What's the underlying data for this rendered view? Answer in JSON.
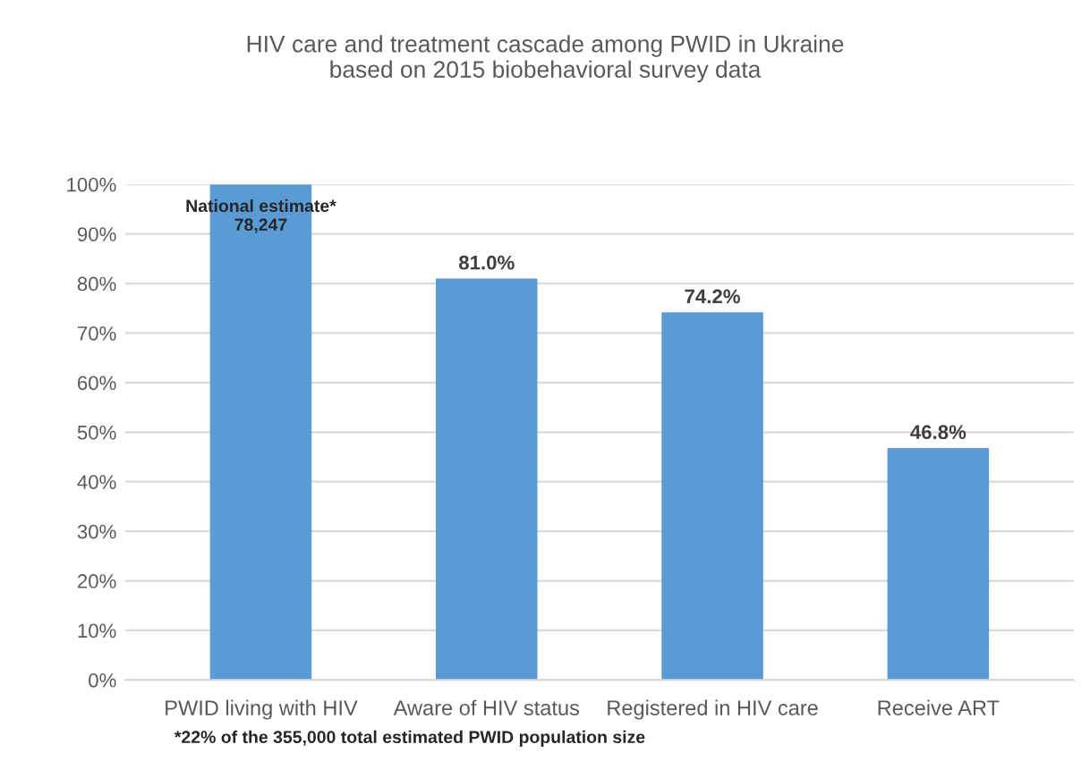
{
  "chart_data": {
    "type": "bar",
    "title": "HIV care and treatment cascade among PWID in Ukraine\nbased on 2015 biobehavioral survey data",
    "categories": [
      "PWID living with HIV",
      "Aware of HIV status",
      "Registered in HIV care",
      "Receive ART"
    ],
    "values": [
      100,
      81.0,
      74.2,
      46.8
    ],
    "value_labels": [
      null,
      "81.0%",
      "74.2%",
      "46.8%"
    ],
    "color": "#5b9bd5",
    "ylim": [
      0,
      100
    ],
    "yticks": [
      {
        "value": 0,
        "label": "0%"
      },
      {
        "value": 10,
        "label": "10%"
      },
      {
        "value": 20,
        "label": "20%"
      },
      {
        "value": 30,
        "label": "30%"
      },
      {
        "value": 40,
        "label": "40%"
      },
      {
        "value": 50,
        "label": "50%"
      },
      {
        "value": 60,
        "label": "60%"
      },
      {
        "value": 70,
        "label": "70%"
      },
      {
        "value": 80,
        "label": "80%"
      },
      {
        "value": 90,
        "label": "90%"
      },
      {
        "value": 100,
        "label": "100%"
      }
    ],
    "grid": "y",
    "annotations": [
      {
        "text": "National estimate*\n78,247",
        "x": "PWID living with HIV",
        "y": 100
      },
      "*22% of the 355,000 total estimated PWID population size"
    ]
  }
}
